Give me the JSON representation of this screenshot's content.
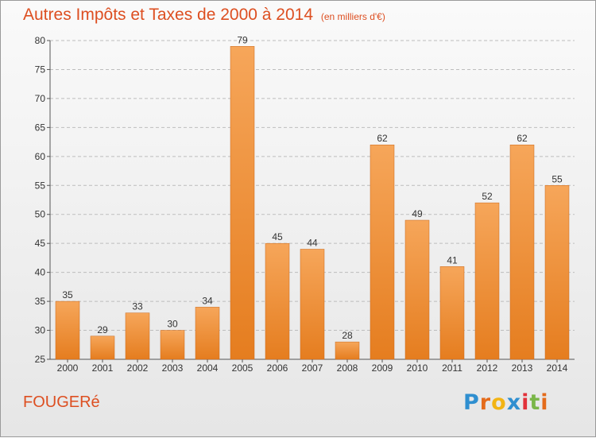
{
  "chart_data": {
    "type": "bar",
    "title": "Autres Impôts et Taxes de 2000 à 2014",
    "subtitle": "(en milliers d'€)",
    "categories": [
      "2000",
      "2001",
      "2002",
      "2003",
      "2004",
      "2005",
      "2006",
      "2007",
      "2008",
      "2009",
      "2010",
      "2011",
      "2012",
      "2013",
      "2014"
    ],
    "values": [
      35,
      29,
      33,
      30,
      34,
      79,
      45,
      44,
      28,
      62,
      49,
      41,
      52,
      62,
      55
    ],
    "ylim": [
      25,
      80
    ],
    "yticks": [
      25,
      30,
      35,
      40,
      45,
      50,
      55,
      60,
      65,
      70,
      75,
      80
    ],
    "grid": true,
    "bar_color": "#e57d1f",
    "bar_color_light": "#f6a65a"
  },
  "commune": "FOUGERé",
  "logo": {
    "letters": [
      "P",
      "r",
      "o",
      "x",
      "i",
      "t",
      "i"
    ],
    "colors": [
      "#2f8fd0",
      "#e46b1b",
      "#f2b415",
      "#2f8fd0",
      "#e2323a",
      "#7ab648",
      "#e46b1b"
    ]
  }
}
